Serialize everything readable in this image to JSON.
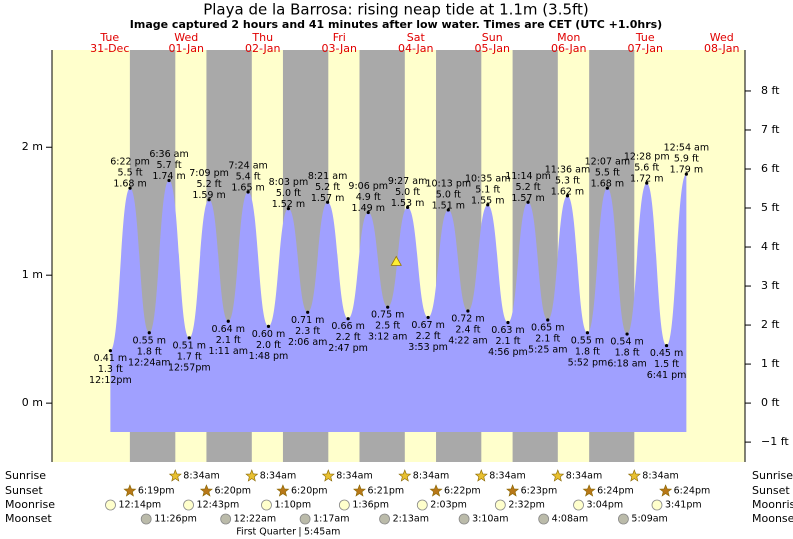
{
  "chart_data": {
    "type": "tide",
    "title": "Playa de la Barrosa: rising  neap tide at 1.1m (3.5ft)",
    "subtitle": "Image captured 2 hours and 41 minutes after low water. Times are CET (UTC +1.0hrs)",
    "days": {
      "weekdays": [
        "Tue",
        "Wed",
        "Thu",
        "Fri",
        "Sat",
        "Sun",
        "Mon",
        "Tue",
        "Wed"
      ],
      "dates": [
        "31-Dec",
        "01-Jan",
        "02-Jan",
        "03-Jan",
        "04-Jan",
        "05-Jan",
        "06-Jan",
        "07-Jan",
        "08-Jan"
      ]
    },
    "ylim": [
      -0.46,
      2.76
    ],
    "yticks": [
      {
        "value": 0,
        "label": "0 m"
      },
      {
        "value": 1,
        "label": "1 m"
      },
      {
        "value": 2,
        "label": "2 m"
      }
    ],
    "y2lim": [
      -1.51,
      9.05
    ],
    "y2ticks": [
      {
        "value": -1,
        "label": "−1 ft"
      },
      {
        "value": 0,
        "label": "0 ft"
      },
      {
        "value": 1,
        "label": "1 ft"
      },
      {
        "value": 2,
        "label": "2 ft"
      },
      {
        "value": 3,
        "label": "3 ft"
      },
      {
        "value": 4,
        "label": "4 ft"
      },
      {
        "value": 5,
        "label": "5 ft"
      },
      {
        "value": 6,
        "label": "6 ft"
      },
      {
        "value": 7,
        "label": "7 ft"
      },
      {
        "value": 8,
        "label": "8 ft"
      }
    ],
    "tides": {
      "color": "#a0a0ff",
      "times": [
        "12:12pm",
        "6:22 pm",
        "12:24am",
        "6:36 am",
        "12:57pm",
        "7:09 pm",
        "1:11 am",
        "7:24 am",
        "1:48 pm",
        "8:03 pm",
        "2:06 am",
        "8:21 am",
        "2:47 pm",
        "9:06 pm",
        "3:12 am",
        "9:27 am",
        "3:53 pm",
        "10:13 pm",
        "4:22 am",
        "10:35 am",
        "4:56 pm",
        "11:14 pm",
        "5:25 am",
        "11:36 am",
        "5:52 pm",
        "12:07 am",
        "6:18 am",
        "12:28 pm",
        "6:41 pm",
        "12:54 am"
      ],
      "values": [
        0.41,
        1.68,
        0.55,
        1.74,
        0.51,
        1.59,
        0.64,
        1.65,
        0.6,
        1.52,
        0.71,
        1.57,
        0.66,
        1.49,
        0.75,
        1.53,
        0.67,
        1.51,
        0.72,
        1.55,
        0.63,
        1.57,
        0.65,
        1.62,
        0.55,
        1.68,
        0.54,
        1.72,
        0.45,
        1.79
      ],
      "value_labels": [
        "0.41 m",
        "1.68 m",
        "0.55 m",
        "1.74 m",
        "0.51 m",
        "1.59 m",
        "0.64 m",
        "1.65 m",
        "0.60 m",
        "1.52 m",
        "0.71 m",
        "1.57 m",
        "0.66 m",
        "1.49 m",
        "0.75 m",
        "1.53 m",
        "0.67 m",
        "1.51 m",
        "0.72 m",
        "1.55 m",
        "0.63 m",
        "1.57 m",
        "0.65 m",
        "1.62 m",
        "0.55 m",
        "1.68 m",
        "0.54 m",
        "1.72 m",
        "0.45 m",
        "1.79 m"
      ],
      "feet_labels": [
        "1.3 ft",
        "5.5 ft",
        "1.8 ft",
        "5.7 ft",
        "1.7 ft",
        "5.2 ft",
        "2.1 ft",
        "5.4 ft",
        "2.0 ft",
        "5.0 ft",
        "2.3 ft",
        "5.2 ft",
        "2.2 ft",
        "4.9 ft",
        "2.5 ft",
        "5.0 ft",
        "2.2 ft",
        "5.0 ft",
        "2.4 ft",
        "5.1 ft",
        "2.1 ft",
        "5.2 ft",
        "2.1 ft",
        "5.3 ft",
        "1.8 ft",
        "5.5 ft",
        "1.8 ft",
        "5.6 ft",
        "1.5 ft",
        "5.9 ft"
      ]
    },
    "current_marker": {
      "level": 1.1,
      "time": "5:53am",
      "date": "04-Jan"
    },
    "rows": [
      "Sunrise",
      "Sunset",
      "Moonrise",
      "Moonset"
    ],
    "sunrise": [
      null,
      "8:34am",
      "8:34am",
      "8:34am",
      "8:34am",
      "8:34am",
      "8:34am",
      "8:34am",
      null
    ],
    "sunset": [
      "6:19pm",
      "6:20pm",
      "6:20pm",
      "6:21pm",
      "6:22pm",
      "6:23pm",
      "6:24pm",
      "6:24pm",
      null
    ],
    "moonrise": [
      "12:14pm",
      "12:43pm",
      "1:10pm",
      "1:36pm",
      "2:03pm",
      "2:32pm",
      "3:04pm",
      "3:41pm",
      null
    ],
    "moonset": [
      "11:26pm",
      null,
      "12:22am",
      "1:17am",
      "2:13am",
      "3:10am",
      "4:08am",
      "5:09am",
      null
    ],
    "moon_phase": {
      "name": "First Quarter",
      "time": "5:45am"
    }
  }
}
